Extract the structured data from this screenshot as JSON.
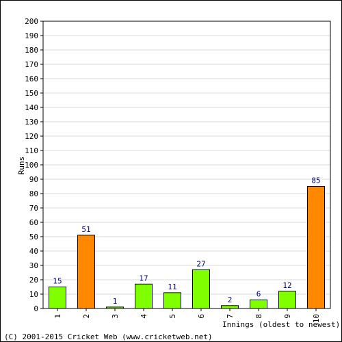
{
  "chart_data": {
    "type": "bar",
    "categories": [
      "1",
      "2",
      "3",
      "4",
      "5",
      "6",
      "7",
      "8",
      "9",
      "10"
    ],
    "values": [
      15,
      51,
      1,
      17,
      11,
      27,
      2,
      6,
      12,
      85
    ],
    "bar_colors": [
      "#80ff00",
      "#ff8800",
      "#80ff00",
      "#80ff00",
      "#80ff00",
      "#80ff00",
      "#80ff00",
      "#80ff00",
      "#80ff00",
      "#ff8800"
    ],
    "xlabel": "Innings (oldest to newest)",
    "ylabel": "Runs",
    "ylim": [
      0,
      200
    ],
    "ytick_step": 10,
    "grid": true,
    "label_color": "#000080"
  },
  "footer": "(C) 2001-2015 Cricket Web (www.cricketweb.net)"
}
